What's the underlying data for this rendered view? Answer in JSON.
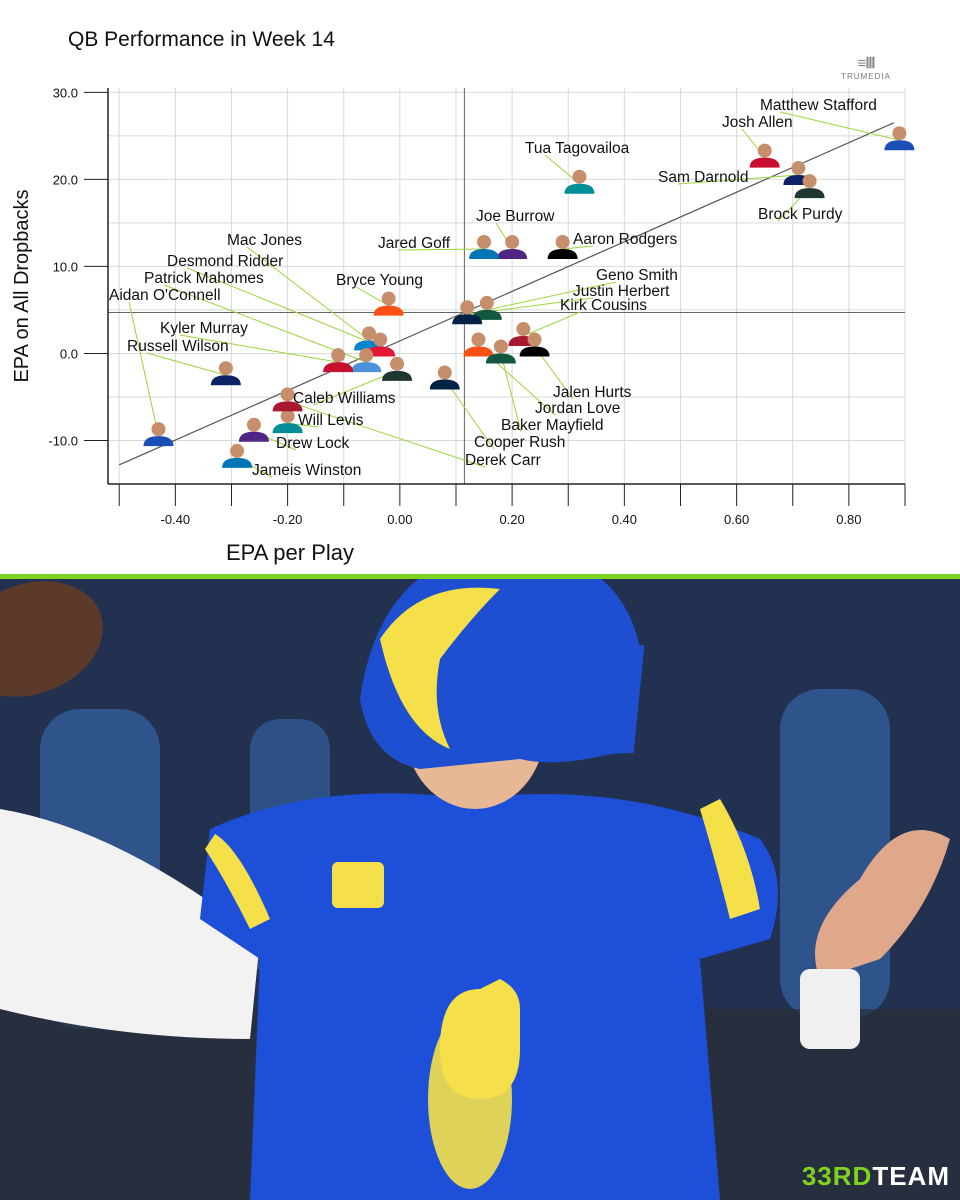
{
  "chart_data": {
    "type": "scatter",
    "title": "QB Performance in Week 14",
    "xlabel": "EPA per Play",
    "ylabel": "EPA on All Dropbacks",
    "xlim": [
      -0.52,
      0.9
    ],
    "ylim": [
      -15,
      30.5
    ],
    "x_ticks": [
      -0.4,
      -0.2,
      0.0,
      0.2,
      0.4,
      0.6,
      0.8
    ],
    "x_tick_labels": [
      "-0.40",
      "-0.20",
      "0.00",
      "0.20",
      "0.40",
      "0.60",
      "0.80"
    ],
    "y_ticks": [
      -10,
      0,
      10,
      20,
      30
    ],
    "y_tick_labels": [
      "-10.0",
      "0.0",
      "10.0",
      "20.0",
      "30.0"
    ],
    "mean_x": 0.115,
    "mean_y": 4.7,
    "trendline": {
      "x": [
        -0.5,
        0.88
      ],
      "y": [
        -12.8,
        26.5
      ]
    },
    "grid": true,
    "points": [
      {
        "name": "Matthew Stafford",
        "x": 0.89,
        "y": 24.5
      },
      {
        "name": "Josh Allen",
        "x": 0.65,
        "y": 22.5
      },
      {
        "name": "Sam Darnold",
        "x": 0.71,
        "y": 20.5
      },
      {
        "name": "Brock Purdy",
        "x": 0.73,
        "y": 19.0
      },
      {
        "name": "Tua Tagovailoa",
        "x": 0.32,
        "y": 19.5
      },
      {
        "name": "Joe Burrow",
        "x": 0.2,
        "y": 12.0
      },
      {
        "name": "Jared Goff",
        "x": 0.15,
        "y": 12.0
      },
      {
        "name": "Aaron Rodgers",
        "x": 0.29,
        "y": 12.0
      },
      {
        "name": "Bryce Young",
        "x": -0.02,
        "y": 5.5
      },
      {
        "name": "Geno Smith",
        "x": 0.155,
        "y": 5.0
      },
      {
        "name": "Justin Herbert",
        "x": 0.12,
        "y": 4.5
      },
      {
        "name": "Kirk Cousins",
        "x": 0.22,
        "y": 2.0
      },
      {
        "name": "Mac Jones",
        "x": -0.055,
        "y": 1.5
      },
      {
        "name": "Desmond Ridder",
        "x": -0.035,
        "y": 0.8
      },
      {
        "name": "Patrick Mahomes",
        "x": -0.06,
        "y": -1.0
      },
      {
        "name": "Aidan O'Connell",
        "x": -0.43,
        "y": -9.5
      },
      {
        "name": "Kyler Murray",
        "x": -0.11,
        "y": -1.0
      },
      {
        "name": "Russell Wilson",
        "x": -0.31,
        "y": -2.5
      },
      {
        "name": "Caleb Williams",
        "x": -0.005,
        "y": -2.0
      },
      {
        "name": "Will Levis",
        "x": -0.2,
        "y": -8.0
      },
      {
        "name": "Drew Lock",
        "x": -0.26,
        "y": -9.0
      },
      {
        "name": "Jameis Winston",
        "x": -0.29,
        "y": -12.0
      },
      {
        "name": "Jalen Hurts",
        "x": 0.24,
        "y": 0.8
      },
      {
        "name": "Jordan Love",
        "x": 0.14,
        "y": 0.8
      },
      {
        "name": "Baker Mayfield",
        "x": 0.18,
        "y": 0.0
      },
      {
        "name": "Cooper Rush",
        "x": 0.08,
        "y": -3.0
      },
      {
        "name": "Derek Carr",
        "x": -0.2,
        "y": -5.5
      }
    ]
  },
  "brand": {
    "mark": "≡Ⅲ",
    "word": "TRUMEDIA"
  },
  "footer": {
    "prefix": "33RD",
    "suffix": "TEAM"
  },
  "colors": {
    "accent_green": "#7ed321",
    "grid": "#d9d9d9",
    "leader_line": "#9bd53b",
    "axis": "#222222"
  }
}
